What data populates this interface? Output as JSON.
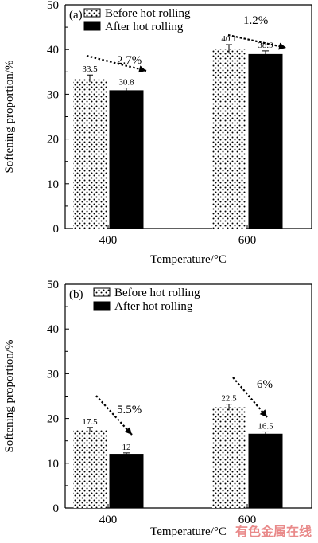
{
  "chart_data": [
    {
      "type": "bar",
      "panel_label": "(a)",
      "categories": [
        "400",
        "600"
      ],
      "series": [
        {
          "name": "Before hot rolling",
          "values": [
            33.5,
            40.1
          ],
          "errors": [
            0.8,
            1.0
          ],
          "pattern": "dotted"
        },
        {
          "name": "After hot rolling",
          "values": [
            30.8,
            38.9
          ],
          "errors": [
            0.6,
            0.8
          ],
          "pattern": "solid"
        }
      ],
      "data_labels": [
        [
          "33.5",
          "40.1"
        ],
        [
          "30.8",
          "38.9"
        ]
      ],
      "annotations": [
        "2.7%",
        "1.2%"
      ],
      "xlabel": "Temperature/°C",
      "ylabel": "Softening proportion/%",
      "ylim": [
        0,
        50
      ],
      "yticks": [
        "0",
        "10",
        "20",
        "30",
        "40",
        "50"
      ],
      "legend": "top-left",
      "grid": false
    },
    {
      "type": "bar",
      "panel_label": "(b)",
      "categories": [
        "400",
        "600"
      ],
      "series": [
        {
          "name": "Before hot rolling",
          "values": [
            17.5,
            22.5
          ],
          "errors": [
            0.5,
            0.7
          ],
          "pattern": "dotted"
        },
        {
          "name": "After hot rolling",
          "values": [
            12,
            16.5
          ],
          "errors": [
            0.3,
            0.5
          ],
          "pattern": "solid"
        }
      ],
      "data_labels": [
        [
          "17.5",
          "22.5"
        ],
        [
          "12",
          "16.5"
        ]
      ],
      "annotations": [
        "5.5%",
        "6%"
      ],
      "xlabel": "Temperature/°C",
      "ylabel": "Softening proportion/%",
      "ylim": [
        0,
        50
      ],
      "yticks": [
        "0",
        "10",
        "20",
        "30",
        "40",
        "50"
      ],
      "legend": "top-left",
      "grid": false
    }
  ],
  "watermark": "有色金属在线",
  "colors": {
    "bar_solid": "#000000",
    "dot_fill": "#000000",
    "axis": "#000000",
    "watermark": "#e98a8a"
  }
}
